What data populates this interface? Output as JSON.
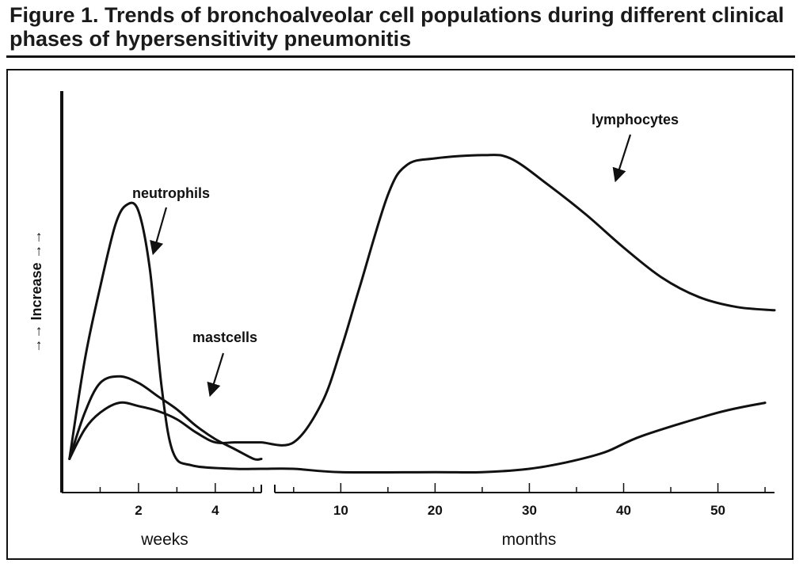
{
  "title": "Figure 1. Trends of bronchoalveolar cell populations during different clinical phases of hypersensitivity pneumonitis",
  "chart_data": {
    "type": "line",
    "title": "Figure 1. Trends of bronchoalveolar cell populations during different clinical phases of hypersensitivity pneumonitis",
    "ylabel": "→→ Increase →→",
    "ylim": [
      0,
      100
    ],
    "weeks_panel": {
      "xlabel": "weeks",
      "ticks": [
        2,
        4
      ],
      "xlim": [
        0,
        5.2
      ]
    },
    "months_panel": {
      "xlabel": "months",
      "ticks": [
        10,
        20,
        30,
        40,
        50
      ],
      "xlim": [
        3,
        56
      ]
    },
    "series": [
      {
        "name": "neutrophils",
        "label": "neutrophils",
        "weeks": [
          [
            0.2,
            3
          ],
          [
            0.6,
            33
          ],
          [
            1,
            55
          ],
          [
            1.4,
            74
          ],
          [
            1.7,
            80
          ],
          [
            2.0,
            78
          ],
          [
            2.3,
            60
          ],
          [
            2.6,
            25
          ],
          [
            2.9,
            5
          ],
          [
            3.4,
            1
          ],
          [
            4.5,
            0
          ],
          [
            5.2,
            0
          ]
        ],
        "months": [
          [
            5,
            0
          ],
          [
            10,
            -1
          ],
          [
            20,
            -1
          ],
          [
            25,
            -1
          ],
          [
            30,
            0
          ],
          [
            34,
            2
          ],
          [
            38,
            5
          ],
          [
            42,
            10
          ],
          [
            50,
            17
          ],
          [
            55,
            20
          ]
        ]
      },
      {
        "name": "mastcells",
        "label": "mastcells",
        "weeks": [
          [
            0.2,
            3
          ],
          [
            0.6,
            17
          ],
          [
            1,
            26
          ],
          [
            1.5,
            28
          ],
          [
            2,
            26
          ],
          [
            2.5,
            22
          ],
          [
            3,
            18
          ],
          [
            3.5,
            13
          ],
          [
            4,
            9
          ],
          [
            4.5,
            6
          ],
          [
            5.0,
            3
          ],
          [
            5.2,
            3
          ]
        ]
      },
      {
        "name": "lymphocytes",
        "label": "lymphocytes",
        "weeks": [
          [
            0.2,
            3
          ],
          [
            0.6,
            12
          ],
          [
            1,
            17
          ],
          [
            1.5,
            20
          ],
          [
            2,
            19
          ],
          [
            2.5,
            17.5
          ],
          [
            3,
            15
          ],
          [
            3.5,
            11
          ],
          [
            4,
            8
          ],
          [
            4.5,
            8
          ],
          [
            5.0,
            8
          ],
          [
            5.2,
            8
          ]
        ],
        "months": [
          [
            5,
            8
          ],
          [
            8,
            20
          ],
          [
            10,
            36
          ],
          [
            12,
            55
          ],
          [
            15,
            83
          ],
          [
            17,
            92
          ],
          [
            20,
            94
          ],
          [
            25,
            95
          ],
          [
            28,
            94
          ],
          [
            32,
            86
          ],
          [
            36,
            77
          ],
          [
            40,
            67
          ],
          [
            44,
            58
          ],
          [
            48,
            52
          ],
          [
            52,
            49
          ],
          [
            56,
            48
          ]
        ]
      }
    ],
    "annotations": [
      {
        "text": "neutrophils",
        "points_to": "neutrophils"
      },
      {
        "text": "mastcells",
        "points_to": "mastcells"
      },
      {
        "text": "lymphocytes",
        "points_to": "lymphocytes"
      }
    ]
  }
}
